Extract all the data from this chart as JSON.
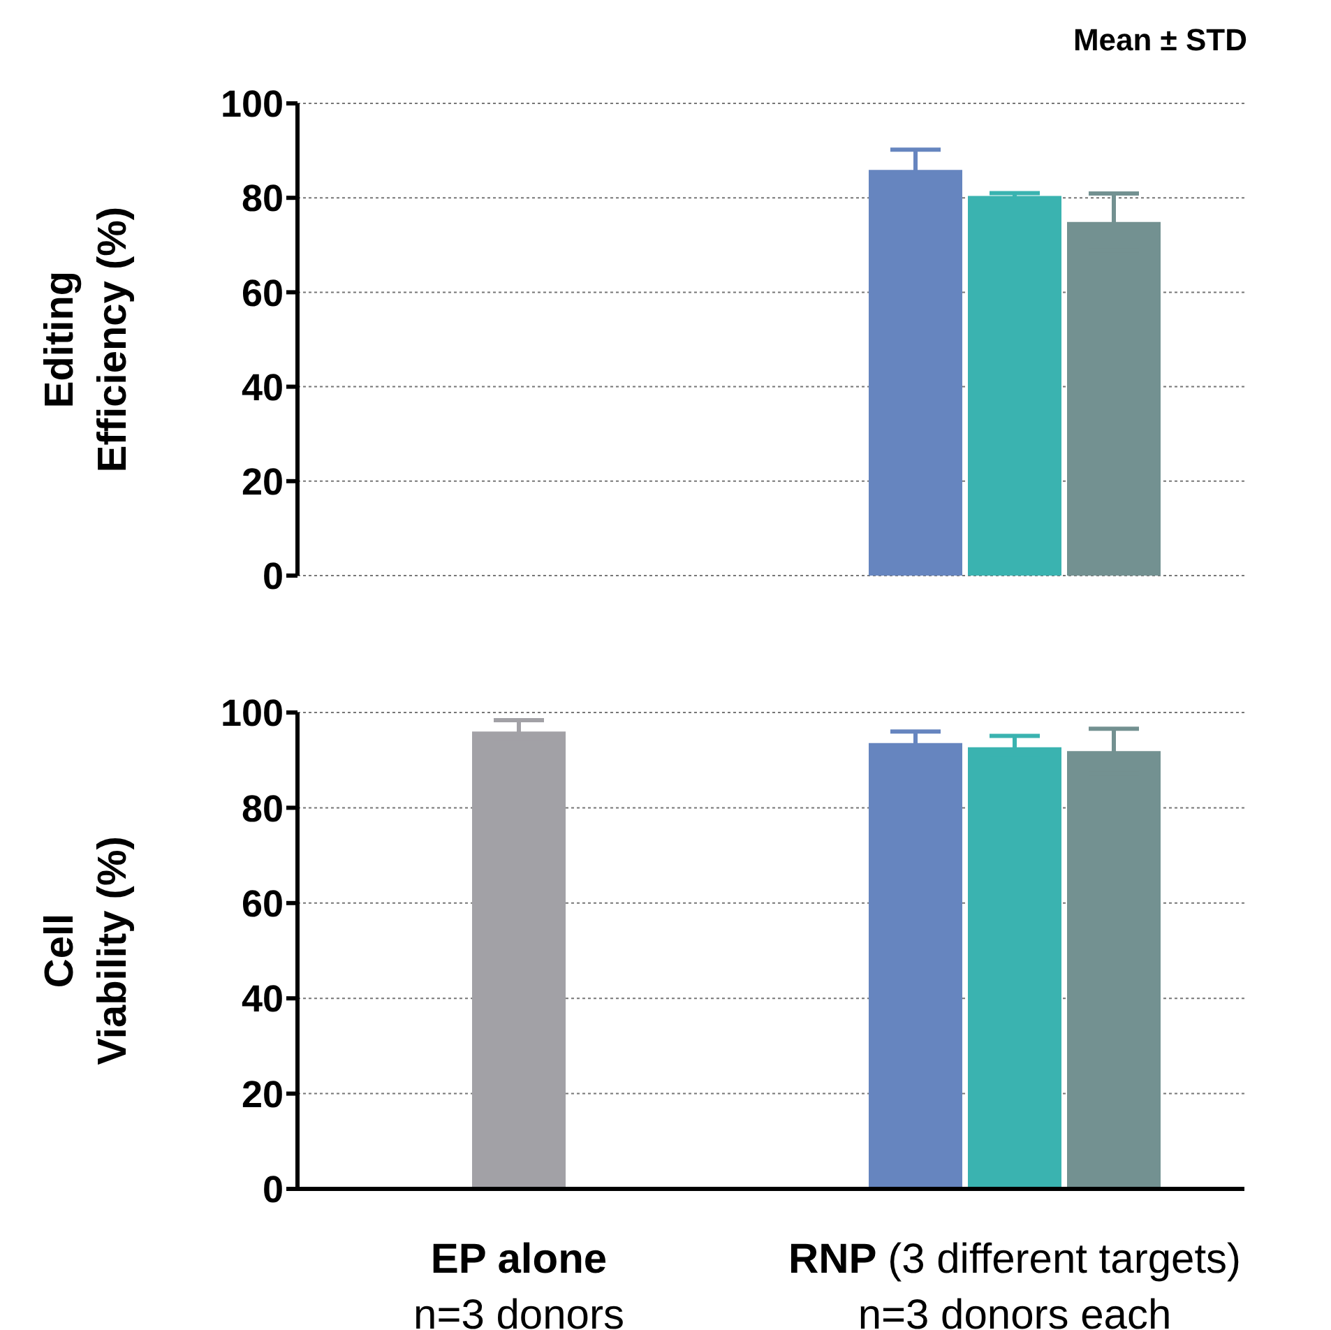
{
  "chart_data": [
    {
      "type": "bar",
      "ylabel": "Editing\nEfficiency (%)",
      "annotations": [
        "Mean ± STD"
      ],
      "categories": [
        null,
        null,
        null,
        null,
        null,
        null,
        null
      ],
      "values": [
        null,
        null,
        null,
        null,
        85.9,
        80.4,
        74.9
      ],
      "errors": [
        null,
        null,
        null,
        null,
        4.3,
        0.6,
        6
      ],
      "colors": [
        null,
        null,
        null,
        null,
        "#6685bf",
        "#3ab3b0",
        "#739191"
      ],
      "ylim": [
        0,
        100
      ],
      "yticks": [
        0,
        20,
        40,
        60,
        80,
        100
      ],
      "grid": "y"
    },
    {
      "type": "bar",
      "ylabel": "Cell\nViability (%)",
      "categories": [
        "EP alone\nn=3 donors",
        null,
        null,
        null,
        null,
        "RNP (3 different targets)\nn=3 donors each",
        null
      ],
      "values": [
        96.0,
        null,
        null,
        null,
        93.6,
        92.7,
        91.9
      ],
      "errors": [
        2.4,
        null,
        null,
        null,
        2.4,
        2.4,
        4.7
      ],
      "colors": [
        "#a2a1a6",
        null,
        null,
        null,
        "#6685bf",
        "#3ab3b0",
        "#739191"
      ],
      "ylim": [
        0,
        100
      ],
      "yticks": [
        0,
        20,
        40,
        60,
        80,
        100
      ],
      "grid": "y"
    }
  ]
}
